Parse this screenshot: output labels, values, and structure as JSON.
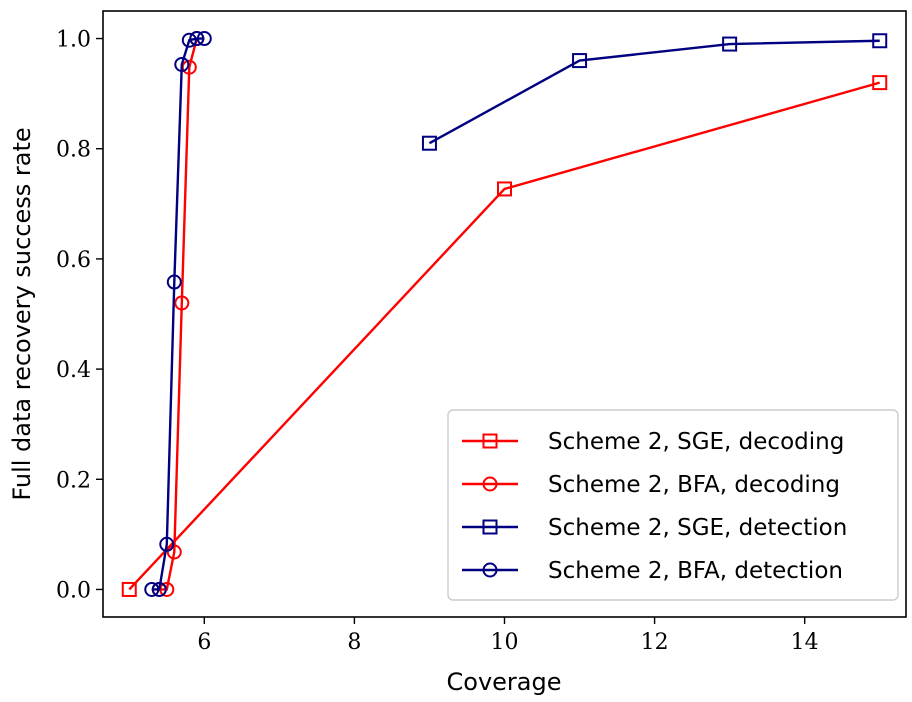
{
  "chart_data": {
    "type": "line",
    "xlabel": "Coverage",
    "ylabel": "Full data recovery success rate",
    "xlim": [
      4.65,
      15.35
    ],
    "ylim": [
      -0.05,
      1.05
    ],
    "xticks": [
      6,
      8,
      10,
      12,
      14
    ],
    "yticks": [
      0.0,
      0.2,
      0.4,
      0.6,
      0.8,
      1.0
    ],
    "grid": false,
    "legend_position": "bottom-right",
    "series": [
      {
        "name": "Scheme 2, SGE, decoding",
        "color": "#ff0000",
        "marker": "square",
        "x": [
          5,
          10,
          15
        ],
        "y": [
          0.0,
          0.727,
          0.92
        ]
      },
      {
        "name": "Scheme 2, BFA, decoding",
        "color": "#ff0000",
        "marker": "circle",
        "x": [
          5.4,
          5.5,
          5.6,
          5.7,
          5.8,
          5.9
        ],
        "y": [
          0.0,
          0.0,
          0.068,
          0.52,
          0.948,
          1.0
        ]
      },
      {
        "name": "Scheme 2, SGE, detection",
        "color": "#000080",
        "marker": "square",
        "x": [
          9,
          11,
          13,
          15
        ],
        "y": [
          0.81,
          0.96,
          0.99,
          0.996
        ]
      },
      {
        "name": "Scheme 2, BFA, detection",
        "color": "#000080",
        "marker": "circle",
        "x": [
          5.3,
          5.4,
          5.5,
          5.6,
          5.7,
          5.8,
          5.9,
          6.0
        ],
        "y": [
          0.0,
          0.0,
          0.082,
          0.558,
          0.953,
          0.997,
          1.0,
          1.0
        ]
      }
    ]
  }
}
